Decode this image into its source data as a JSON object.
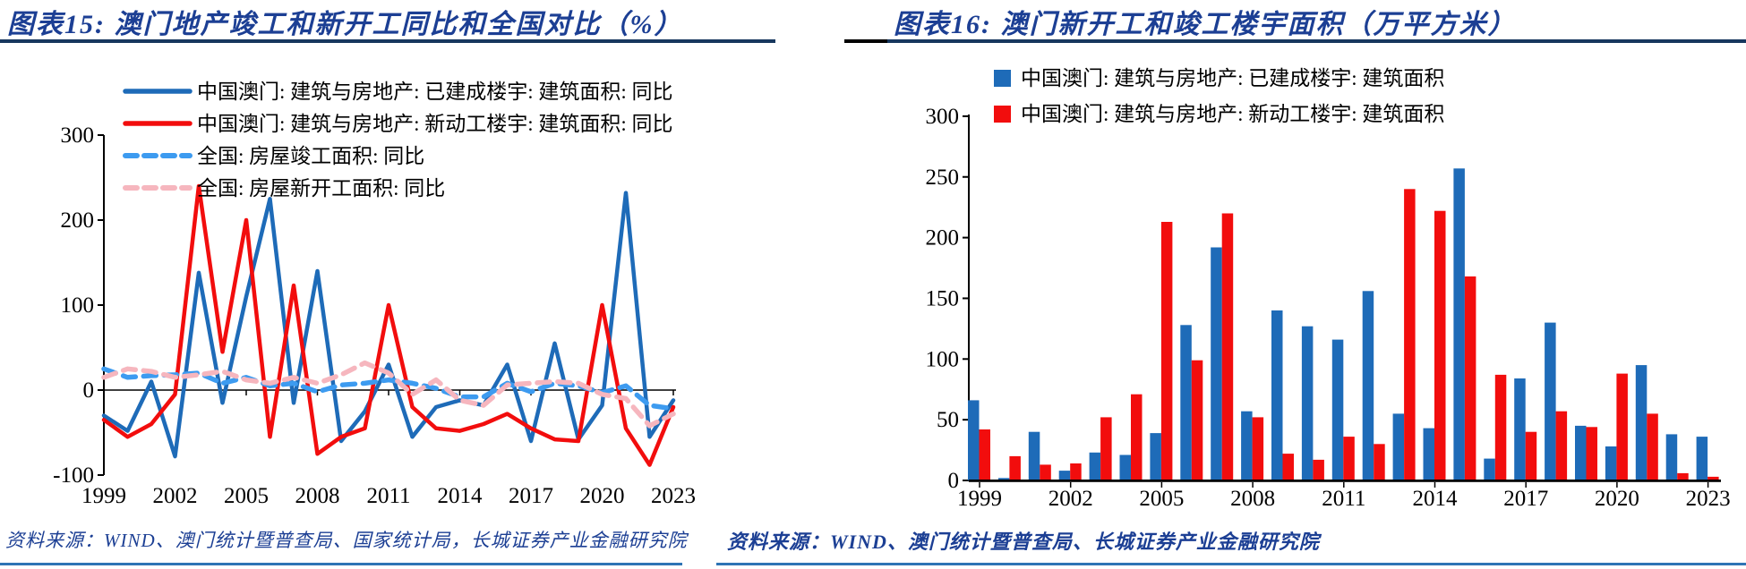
{
  "figures": [
    {
      "id": "fig15",
      "title": "图表15:  澳门地产竣工和新开工同比和全国对比（%）",
      "source": "资料来源：WIND、澳门统计暨普查局、国家统计局，长城证券产业金融研究院"
    },
    {
      "id": "fig16",
      "title": "图表16:  澳门新开工和竣工楼宇面积（万平方米）",
      "source": "资料来源：WIND、澳门统计暨普查局、长城证券产业金融研究院"
    }
  ],
  "colors": {
    "title_blue": "#1C3F94",
    "rule_navy": "#17375E",
    "rule_black": "#000000",
    "bottom_rule_blue": "#2E74B5",
    "macau_completed_blue": "#1E6BB8",
    "macau_starts_red": "#F20D0D",
    "national_completed_dashed_blue": "#3D9BF0",
    "national_starts_dashed_pink": "#F6B6BE",
    "axis_black": "#000000"
  },
  "chart_data": [
    {
      "type": "line",
      "title": "澳门地产竣工和新开工同比和全国对比（%）",
      "x": [
        1999,
        2000,
        2001,
        2002,
        2003,
        2004,
        2005,
        2006,
        2007,
        2008,
        2009,
        2010,
        2011,
        2012,
        2013,
        2014,
        2015,
        2016,
        2017,
        2018,
        2019,
        2020,
        2021,
        2022,
        2023
      ],
      "x_tick_labels": [
        "1999",
        "2002",
        "2005",
        "2008",
        "2011",
        "2014",
        "2017",
        "2020",
        "2023"
      ],
      "ylim": [
        -100,
        300
      ],
      "yticks": [
        300,
        200,
        100,
        0,
        -100
      ],
      "grid": false,
      "legend_position": "top-inside",
      "series": [
        {
          "name": "中国澳门: 建筑与房地产: 已建成楼宇: 建筑面积: 同比",
          "color": "#1E6BB8",
          "style": "solid",
          "values": [
            -30,
            -48,
            10,
            -78,
            138,
            -15,
            110,
            225,
            -15,
            140,
            -60,
            -25,
            30,
            -55,
            -20,
            -12,
            -18,
            30,
            -60,
            55,
            -58,
            -18,
            232,
            -55,
            -12
          ]
        },
        {
          "name": "中国澳门: 建筑与房地产: 新动工楼宇: 建筑面积: 同比",
          "color": "#F20D0D",
          "style": "solid",
          "values": [
            -35,
            -55,
            -40,
            -5,
            240,
            45,
            200,
            -55,
            123,
            -75,
            -55,
            -45,
            100,
            -20,
            -45,
            -48,
            -40,
            -28,
            -45,
            -58,
            -60,
            100,
            -45,
            -88,
            -20
          ]
        },
        {
          "name": "全国: 房屋竣工面积: 同比",
          "color": "#3D9BF0",
          "style": "dashed",
          "values": [
            25,
            15,
            17,
            18,
            20,
            8,
            15,
            5,
            8,
            -2,
            6,
            8,
            12,
            8,
            2,
            -8,
            -8,
            8,
            -2,
            8,
            5,
            -3,
            5,
            -18,
            -22
          ]
        },
        {
          "name": "全国: 房屋新开工面积: 同比",
          "color": "#F6B6BE",
          "style": "dashed",
          "values": [
            15,
            25,
            22,
            15,
            18,
            22,
            12,
            8,
            15,
            8,
            18,
            32,
            20,
            -5,
            12,
            -12,
            -18,
            6,
            8,
            10,
            8,
            -5,
            -10,
            -42,
            -28
          ]
        }
      ]
    },
    {
      "type": "bar",
      "title": "澳门新开工和竣工楼宇面积（万平方米）",
      "categories": [
        1999,
        2000,
        2001,
        2002,
        2003,
        2004,
        2005,
        2006,
        2007,
        2008,
        2009,
        2010,
        2011,
        2012,
        2013,
        2014,
        2015,
        2016,
        2017,
        2018,
        2019,
        2020,
        2021,
        2022,
        2023
      ],
      "x_tick_labels": [
        "1999",
        "2002",
        "2005",
        "2008",
        "2011",
        "2014",
        "2017",
        "2020",
        "2023"
      ],
      "ylim": [
        0,
        300
      ],
      "yticks": [
        0,
        50,
        100,
        150,
        200,
        250,
        300
      ],
      "grid": false,
      "legend_position": "top-inside",
      "series": [
        {
          "name": "中国澳门: 建筑与房地产: 已建成楼宇: 建筑面积",
          "color": "#1E6BB8",
          "values": [
            66,
            2,
            40,
            8,
            23,
            21,
            39,
            128,
            192,
            57,
            140,
            127,
            116,
            156,
            55,
            43,
            257,
            18,
            84,
            130,
            45,
            28,
            95,
            38,
            36
          ]
        },
        {
          "name": "中国澳门: 建筑与房地产: 新动工楼宇: 建筑面积",
          "color": "#F20D0D",
          "values": [
            42,
            20,
            13,
            14,
            52,
            71,
            213,
            99,
            220,
            52,
            22,
            17,
            36,
            30,
            240,
            222,
            168,
            87,
            40,
            57,
            44,
            88,
            55,
            6,
            3
          ]
        }
      ]
    }
  ]
}
